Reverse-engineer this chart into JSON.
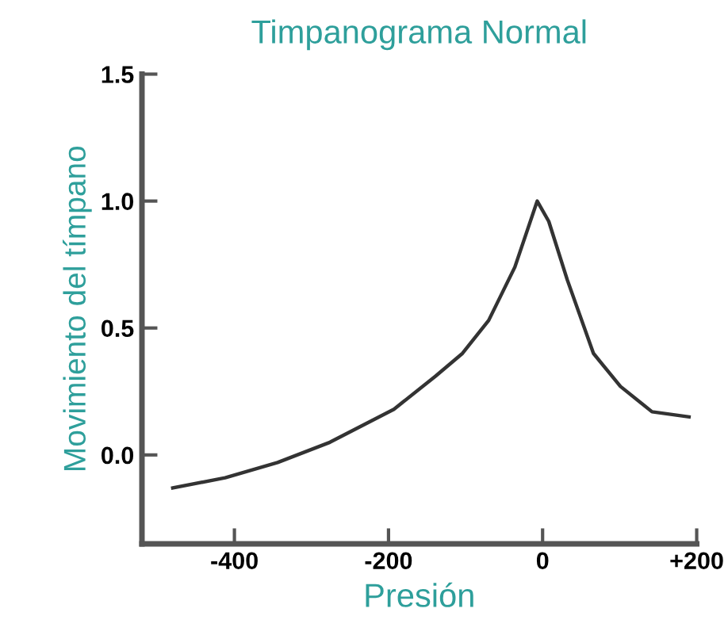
{
  "chart_data": {
    "type": "line",
    "title": "Timpanograma Normal",
    "xlabel": "Presión",
    "ylabel": "Movimiento del tímpano",
    "x": [
      -480,
      -412,
      -344,
      -276,
      -193,
      -139,
      -104,
      -70,
      -36,
      -7,
      8,
      32,
      66,
      101,
      142,
      190
    ],
    "series": [
      {
        "color": "#333333",
        "values": [
          -0.13,
          -0.09,
          -0.03,
          0.05,
          0.18,
          0.31,
          0.4,
          0.53,
          0.74,
          1.0,
          0.92,
          0.69,
          0.4,
          0.27,
          0.17,
          0.15
        ]
      }
    ],
    "xlim": [
      -520,
      200
    ],
    "ylim": [
      -0.35,
      1.5
    ],
    "xticks": [
      -400,
      -200,
      0,
      {
        "value": 200,
        "label": "+200"
      }
    ],
    "yticks": [
      {
        "value": 0,
        "label": "0.0"
      },
      0.5,
      {
        "value": 1,
        "label": "1.0"
      },
      1.5
    ],
    "grid": false,
    "legend": false,
    "marker": "none",
    "line_style": "solid"
  }
}
